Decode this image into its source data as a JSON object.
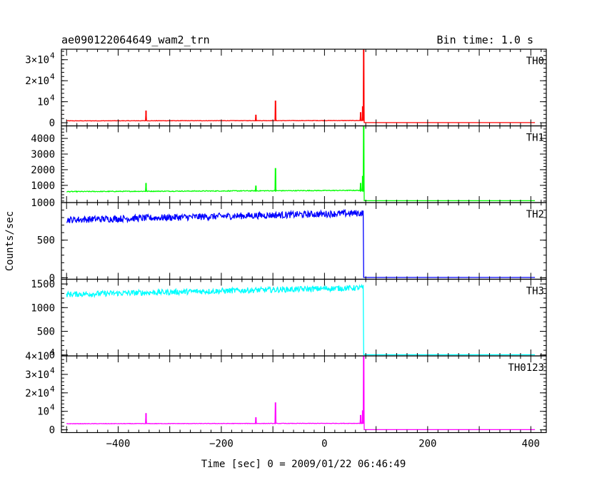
{
  "chart_data": {
    "type": "line",
    "title": "ae090122064649_wam2_trn",
    "subtitle": "Bin time: 1.0 s",
    "xlabel": "Time [sec] 0 = 2009/01/22 06:46:49",
    "ylabel": "Counts/sec",
    "xlim": [
      -510,
      430
    ],
    "x_ticks": [
      -400,
      -200,
      0,
      200,
      400
    ],
    "trigger_time": 76,
    "grid": false,
    "panels": [
      {
        "name": "TH0",
        "color": "#ff0000",
        "ylim": [
          -1500,
          35000
        ],
        "y_ticks": [
          {
            "value": 0,
            "mantissa": "0",
            "exponent": ""
          },
          {
            "value": 10000,
            "mantissa": "10",
            "exponent": "4"
          },
          {
            "value": 20000,
            "mantissa": "2×10",
            "exponent": "4"
          },
          {
            "value": 30000,
            "mantissa": "3×10",
            "exponent": "4"
          }
        ],
        "baseline_start": 900,
        "baseline_end": 1050,
        "noise": 100,
        "post_level": 80,
        "spikes": [
          {
            "t": -346,
            "v": 5800
          },
          {
            "t": -133,
            "v": 3800
          },
          {
            "t": -95,
            "v": 10500
          },
          {
            "t": 70,
            "v": 5000
          },
          {
            "t": 74,
            "v": 7800
          },
          {
            "t": 76,
            "v": 35000
          }
        ]
      },
      {
        "name": "TH1",
        "color": "#00ff00",
        "ylim": [
          -100,
          4800
        ],
        "y_ticks": [
          {
            "value": 1000,
            "mantissa": "1000",
            "exponent": ""
          },
          {
            "value": 2000,
            "mantissa": "2000",
            "exponent": ""
          },
          {
            "value": 3000,
            "mantissa": "3000",
            "exponent": ""
          },
          {
            "value": 4000,
            "mantissa": "4000",
            "exponent": ""
          }
        ],
        "baseline_start": 600,
        "baseline_end": 680,
        "noise": 25,
        "post_level": 20,
        "spikes": [
          {
            "t": -346,
            "v": 1150
          },
          {
            "t": -133,
            "v": 980
          },
          {
            "t": -95,
            "v": 2100
          },
          {
            "t": 70,
            "v": 1150
          },
          {
            "t": 74,
            "v": 1600
          },
          {
            "t": 76,
            "v": 4800
          }
        ]
      },
      {
        "name": "TH2",
        "color": "#0000ff",
        "ylim": [
          -20,
          1000
        ],
        "y_ticks": [
          {
            "value": 0,
            "mantissa": "0",
            "exponent": ""
          },
          {
            "value": 500,
            "mantissa": "500",
            "exponent": ""
          },
          {
            "value": 1000,
            "mantissa": "1000",
            "exponent": ""
          }
        ],
        "baseline_start": 770,
        "baseline_end": 860,
        "noise": 45,
        "post_level": 4,
        "spikes": []
      },
      {
        "name": "TH3",
        "color": "#00ffff",
        "ylim": [
          -20,
          1600
        ],
        "y_ticks": [
          {
            "value": 0,
            "mantissa": "0",
            "exponent": ""
          },
          {
            "value": 500,
            "mantissa": "500",
            "exponent": ""
          },
          {
            "value": 1000,
            "mantissa": "1000",
            "exponent": ""
          },
          {
            "value": 1500,
            "mantissa": "1500",
            "exponent": ""
          }
        ],
        "baseline_start": 1280,
        "baseline_end": 1420,
        "noise": 60,
        "post_level": 5,
        "spikes": []
      },
      {
        "name": "TH0123",
        "color": "#ff00ff",
        "ylim": [
          -1500,
          40000
        ],
        "y_ticks": [
          {
            "value": 0,
            "mantissa": "0",
            "exponent": ""
          },
          {
            "value": 10000,
            "mantissa": "10",
            "exponent": "4"
          },
          {
            "value": 20000,
            "mantissa": "2×10",
            "exponent": "4"
          },
          {
            "value": 30000,
            "mantissa": "3×10",
            "exponent": "4"
          },
          {
            "value": 40000,
            "mantissa": "4×10",
            "exponent": "4"
          }
        ],
        "baseline_start": 3300,
        "baseline_end": 3500,
        "noise": 120,
        "post_level": 100,
        "spikes": [
          {
            "t": -346,
            "v": 9000
          },
          {
            "t": -133,
            "v": 6800
          },
          {
            "t": -95,
            "v": 14800
          },
          {
            "t": 70,
            "v": 8000
          },
          {
            "t": 74,
            "v": 10500
          },
          {
            "t": 76,
            "v": 40000
          }
        ]
      }
    ]
  }
}
